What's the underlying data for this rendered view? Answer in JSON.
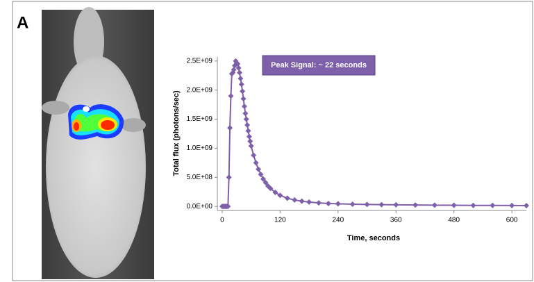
{
  "panel_label": "A",
  "chart_data": {
    "type": "line",
    "annotation": "Peak Signal: ~ 22 seconds",
    "x_label": "Time, seconds",
    "y_label": "Total flux (photons/sec)",
    "xlim": [
      -10,
      630
    ],
    "xticks": [
      0,
      120,
      240,
      360,
      480,
      600
    ],
    "ylim": [
      -70000000,
      2570000000
    ],
    "yticks": [
      {
        "value": 0,
        "label": "0.0E+00"
      },
      {
        "value": 500000000,
        "label": "5.0E+08"
      },
      {
        "value": 1000000000,
        "label": "1.0E+09"
      },
      {
        "value": 1500000000,
        "label": "1.5E+09"
      },
      {
        "value": 2000000000,
        "label": "2.0E+09"
      },
      {
        "value": 2500000000,
        "label": "2.5E+09"
      }
    ],
    "series": [
      {
        "color": "#7e5fa9",
        "x": [
          0,
          2,
          4,
          6,
          8,
          10,
          12,
          14,
          16,
          18,
          20,
          22,
          24,
          26,
          28,
          30,
          32,
          34,
          36,
          38,
          40,
          42,
          44,
          46,
          48,
          50,
          52,
          54,
          56,
          58,
          60,
          65,
          70,
          75,
          80,
          85,
          90,
          95,
          100,
          110,
          120,
          135,
          150,
          165,
          180,
          200,
          220,
          240,
          270,
          300,
          330,
          360,
          400,
          440,
          480,
          520,
          560,
          600,
          630
        ],
        "values": [
          0,
          0,
          0,
          0,
          0,
          0,
          0,
          500000000,
          1350000000,
          1900000000,
          2280000000,
          2300000000,
          2350000000,
          2420000000,
          2500000000,
          2470000000,
          2450000000,
          2380000000,
          2300000000,
          2200000000,
          2100000000,
          1980000000,
          1850000000,
          1720000000,
          1600000000,
          1500000000,
          1400000000,
          1300000000,
          1200000000,
          1120000000,
          1040000000,
          880000000,
          750000000,
          640000000,
          550000000,
          470000000,
          410000000,
          350000000,
          310000000,
          240000000,
          190000000,
          140000000,
          110000000,
          90000000,
          75000000,
          60000000,
          50000000,
          45000000,
          38000000,
          33000000,
          30000000,
          27000000,
          24000000,
          21000000,
          19000000,
          17000000,
          16000000,
          15000000,
          14000000
        ]
      }
    ]
  }
}
